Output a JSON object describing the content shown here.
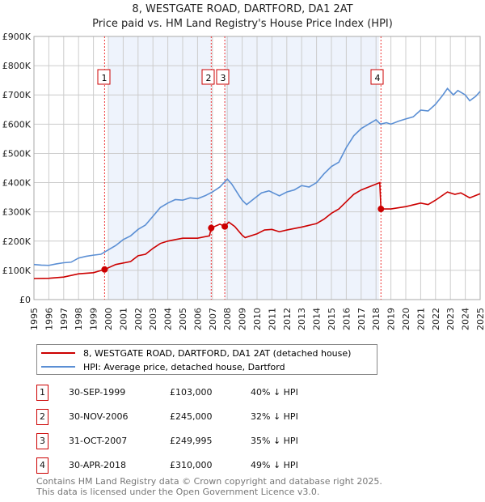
{
  "chart_data": {
    "type": "line",
    "title": "8, WESTGATE ROAD, DARTFORD, DA1 2AT",
    "subtitle": "Price paid vs. HM Land Registry's House Price Index (HPI)",
    "xlim": [
      1995,
      2025
    ],
    "ylim": [
      0,
      900000
    ],
    "x_ticks": [
      "1995",
      "1996",
      "1997",
      "1998",
      "1999",
      "2000",
      "2001",
      "2002",
      "2003",
      "2004",
      "2005",
      "2006",
      "2007",
      "2008",
      "2009",
      "2010",
      "2011",
      "2012",
      "2013",
      "2014",
      "2015",
      "2016",
      "2017",
      "2018",
      "2019",
      "2020",
      "2021",
      "2022",
      "2023",
      "2024",
      "2025"
    ],
    "y_ticks": [
      {
        "v": 0,
        "l": "£0"
      },
      {
        "v": 100000,
        "l": "£100K"
      },
      {
        "v": 200000,
        "l": "£200K"
      },
      {
        "v": 300000,
        "l": "£300K"
      },
      {
        "v": 400000,
        "l": "£400K"
      },
      {
        "v": 500000,
        "l": "£500K"
      },
      {
        "v": 600000,
        "l": "£600K"
      },
      {
        "v": 700000,
        "l": "£700K"
      },
      {
        "v": 800000,
        "l": "£800K"
      },
      {
        "v": 900000,
        "l": "£900K"
      }
    ],
    "grid": true,
    "series": [
      {
        "name": "8, WESTGATE ROAD, DARTFORD, DA1 2AT (detached house)",
        "color": "#cc0000",
        "points": [
          [
            1995,
            72
          ],
          [
            1996,
            73
          ],
          [
            1997,
            77
          ],
          [
            1998,
            88
          ],
          [
            1999,
            92
          ],
          [
            1999.75,
            103
          ],
          [
            2000.5,
            120
          ],
          [
            2001.5,
            130
          ],
          [
            2002,
            150
          ],
          [
            2002.5,
            155
          ],
          [
            2003,
            175
          ],
          [
            2003.5,
            192
          ],
          [
            2004,
            200
          ],
          [
            2004.5,
            205
          ],
          [
            2005,
            210
          ],
          [
            2006,
            210
          ],
          [
            2006.8,
            218
          ],
          [
            2006.92,
            245
          ],
          [
            2007.5,
            258
          ],
          [
            2007.83,
            250
          ],
          [
            2008.1,
            265
          ],
          [
            2008.5,
            250
          ],
          [
            2009,
            220
          ],
          [
            2009.2,
            212
          ],
          [
            2010,
            225
          ],
          [
            2010.5,
            238
          ],
          [
            2011,
            240
          ],
          [
            2011.5,
            232
          ],
          [
            2012,
            238
          ],
          [
            2013,
            248
          ],
          [
            2014,
            260
          ],
          [
            2014.5,
            275
          ],
          [
            2015,
            295
          ],
          [
            2015.5,
            310
          ],
          [
            2016,
            335
          ],
          [
            2016.5,
            360
          ],
          [
            2017,
            375
          ],
          [
            2017.5,
            385
          ],
          [
            2018,
            395
          ],
          [
            2018.25,
            400
          ],
          [
            2018.33,
            310
          ],
          [
            2019,
            310
          ],
          [
            2020,
            318
          ],
          [
            2021,
            330
          ],
          [
            2021.5,
            325
          ],
          [
            2022,
            340
          ],
          [
            2022.8,
            368
          ],
          [
            2023.3,
            360
          ],
          [
            2023.7,
            365
          ],
          [
            2024.3,
            348
          ],
          [
            2025,
            362
          ]
        ]
      },
      {
        "name": "HPI: Average price, detached house, Dartford",
        "color": "#5b8fd4",
        "points": [
          [
            1995,
            120
          ],
          [
            1995.5,
            118
          ],
          [
            1996,
            117
          ],
          [
            1996.5,
            122
          ],
          [
            1997,
            126
          ],
          [
            1997.5,
            128
          ],
          [
            1998,
            142
          ],
          [
            1998.5,
            148
          ],
          [
            1999,
            152
          ],
          [
            1999.5,
            155
          ],
          [
            2000,
            170
          ],
          [
            2000.5,
            185
          ],
          [
            2001,
            205
          ],
          [
            2001.5,
            218
          ],
          [
            2002,
            240
          ],
          [
            2002.5,
            255
          ],
          [
            2003,
            285
          ],
          [
            2003.5,
            315
          ],
          [
            2004,
            330
          ],
          [
            2004.5,
            342
          ],
          [
            2005,
            340
          ],
          [
            2005.5,
            348
          ],
          [
            2006,
            345
          ],
          [
            2006.5,
            355
          ],
          [
            2007,
            368
          ],
          [
            2007.5,
            385
          ],
          [
            2008,
            412
          ],
          [
            2008.3,
            395
          ],
          [
            2008.8,
            355
          ],
          [
            2009,
            340
          ],
          [
            2009.3,
            325
          ],
          [
            2009.8,
            345
          ],
          [
            2010.3,
            365
          ],
          [
            2010.8,
            372
          ],
          [
            2011.5,
            355
          ],
          [
            2012,
            368
          ],
          [
            2012.5,
            375
          ],
          [
            2013,
            390
          ],
          [
            2013.5,
            385
          ],
          [
            2014,
            400
          ],
          [
            2014.5,
            430
          ],
          [
            2015,
            455
          ],
          [
            2015.5,
            470
          ],
          [
            2016,
            520
          ],
          [
            2016.5,
            560
          ],
          [
            2017,
            585
          ],
          [
            2017.5,
            600
          ],
          [
            2018,
            615
          ],
          [
            2018.3,
            600
          ],
          [
            2018.7,
            605
          ],
          [
            2019,
            600
          ],
          [
            2019.5,
            610
          ],
          [
            2020,
            618
          ],
          [
            2020.5,
            625
          ],
          [
            2021,
            648
          ],
          [
            2021.5,
            645
          ],
          [
            2022,
            668
          ],
          [
            2022.5,
            700
          ],
          [
            2022.8,
            722
          ],
          [
            2023.2,
            700
          ],
          [
            2023.5,
            715
          ],
          [
            2024,
            700
          ],
          [
            2024.3,
            680
          ],
          [
            2024.7,
            695
          ],
          [
            2025,
            712
          ]
        ]
      }
    ],
    "sales": [
      {
        "label": "1",
        "date": "30-SEP-1999",
        "x": 1999.75,
        "price": "£103,000",
        "value": 103000,
        "hpi": "40% ↓ HPI"
      },
      {
        "label": "2",
        "date": "30-NOV-2006",
        "x": 2006.92,
        "price": "£245,000",
        "value": 245000,
        "hpi": "32% ↓ HPI"
      },
      {
        "label": "3",
        "date": "31-OCT-2007",
        "x": 2007.83,
        "price": "£249,995",
        "value": 249995,
        "hpi": "35% ↓ HPI"
      },
      {
        "label": "4",
        "date": "30-APR-2018",
        "x": 2018.33,
        "price": "£310,000",
        "value": 310000,
        "hpi": "49% ↓ HPI"
      }
    ],
    "shaded": [
      [
        2000,
        2006.92
      ],
      [
        2007.83,
        2018.2
      ]
    ]
  },
  "footer": {
    "line1": "Contains HM Land Registry data © Crown copyright and database right 2025.",
    "line2": "This data is licensed under the Open Government Licence v3.0."
  }
}
